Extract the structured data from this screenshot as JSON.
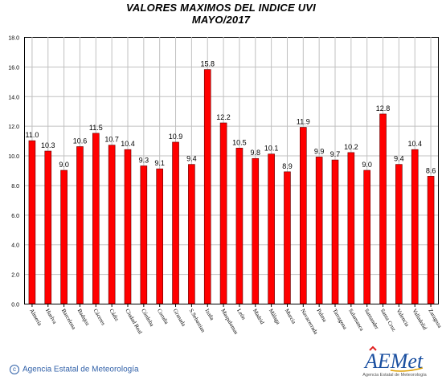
{
  "chart_data": {
    "type": "bar",
    "title": "VALORES MAXIMOS DEL INDICE UVI",
    "subtitle": "MAYO/2017",
    "categories": [
      "Almería",
      "Huelva",
      "Barcelona",
      "Badajoz",
      "Cáceres",
      "Cádiz",
      "Ciudad Real",
      "Córdoba",
      "Coruña",
      "Granada",
      "S.Sebastian",
      "Izaña",
      "Maspalomas",
      "León",
      "Madrid",
      "Málaga",
      "Murcia",
      "Navacerrada",
      "Palma",
      "Tarragona",
      "Salamanca",
      "Santander",
      "Santa Cruz",
      "Valencia",
      "Valladolid",
      "Zaragoza"
    ],
    "values": [
      11.0,
      10.3,
      9.0,
      10.6,
      11.5,
      10.7,
      10.4,
      9.3,
      9.1,
      10.9,
      9.4,
      15.8,
      12.2,
      10.5,
      9.8,
      10.1,
      8.9,
      11.9,
      9.9,
      9.7,
      10.2,
      9.0,
      12.8,
      9.4,
      10.4,
      8.6
    ],
    "value_labels": [
      "11.0",
      "10.3",
      "9.0",
      "10.6",
      "11.5",
      "10.7",
      "10.4",
      "9.3",
      "9.1",
      "10.9",
      "9.4",
      "15.8",
      "12.2",
      "10.5",
      "9.8",
      "10.1",
      "8.9",
      "11.9",
      "9.9",
      "9.7",
      "10.2",
      "9.0",
      "12.8",
      "9.4",
      "10.4",
      "8.6"
    ],
    "y_ticks": [
      "0.0",
      "2.0",
      "4.0",
      "6.0",
      "8.0",
      "10.0",
      "12.0",
      "14.0",
      "16.0",
      "18.0"
    ],
    "ylim": [
      0,
      18
    ],
    "grid": true,
    "bar_color": "#ff0000"
  },
  "footer": {
    "credit": "Agencia Estatal de Meteorología",
    "logo_text": "AEMet",
    "logo_subtext": "Agencia Estatal de Meteorología"
  },
  "colors": {
    "grid": "#c0c0c0",
    "bar": "#ff0000",
    "bar_stroke": "#600000",
    "credit": "#3060a8",
    "logo": "#1a4fa0"
  }
}
